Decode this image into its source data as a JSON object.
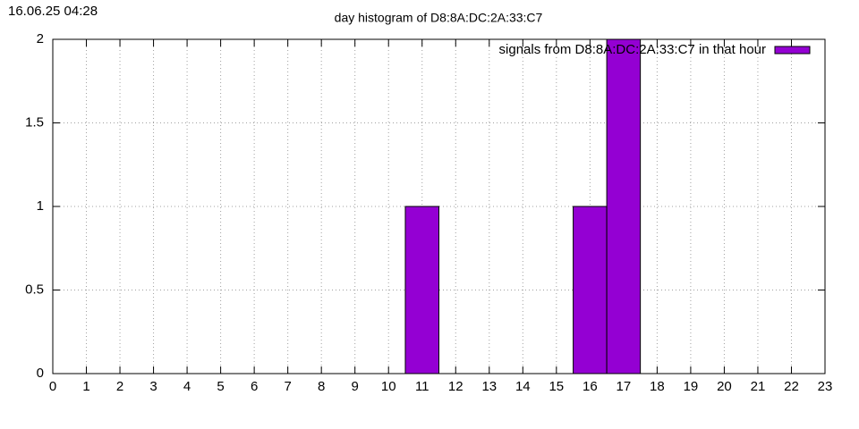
{
  "chart_data": {
    "type": "bar",
    "title": "day histogram of D8:8A:DC:2A:33:C7",
    "annotation": "16.06.25 04:28",
    "x": [
      0,
      1,
      2,
      3,
      4,
      5,
      6,
      7,
      8,
      9,
      10,
      11,
      12,
      13,
      14,
      15,
      16,
      17,
      18,
      19,
      20,
      21,
      22,
      23
    ],
    "series": [
      {
        "name": "signals from D8:8A:DC:2A:33:C7 in that hour",
        "color": "#9400d3",
        "values": [
          0,
          0,
          0,
          0,
          0,
          0,
          0,
          0,
          0,
          0,
          0,
          1,
          0,
          0,
          0,
          0,
          1,
          2,
          0,
          0,
          0,
          0,
          0,
          0
        ]
      }
    ],
    "xlim": [
      0,
      23
    ],
    "xticks": [
      0,
      1,
      2,
      3,
      4,
      5,
      6,
      7,
      8,
      9,
      10,
      11,
      12,
      13,
      14,
      15,
      16,
      17,
      18,
      19,
      20,
      21,
      22,
      23
    ],
    "ylim": [
      0,
      2
    ],
    "yticks": [
      0,
      0.5,
      1,
      1.5,
      2
    ],
    "grid": true,
    "legend": "top-right"
  }
}
